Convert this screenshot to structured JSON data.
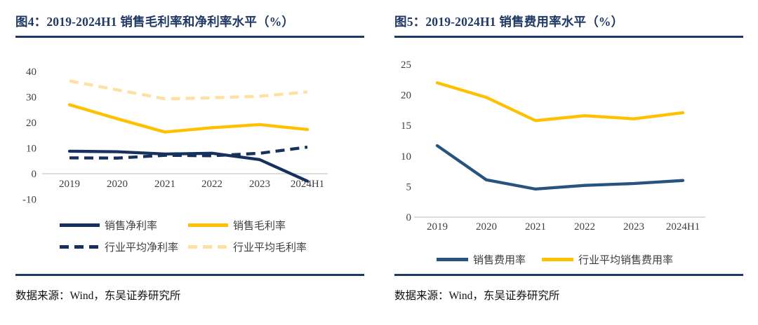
{
  "accent_color": "#1f3864",
  "axis_line_color": "#d0d0d0",
  "panels": [
    {
      "title": "图4：2019-2024H1 销售毛利率和净利率水平（%）",
      "source": "数据来源：Wind，东吴证券研究所"
    },
    {
      "title": "图5：2019-2024H1 销售费用率水平（%）",
      "source": "数据来源：Wind，东吴证券研究所"
    }
  ],
  "chart_data": [
    {
      "type": "line",
      "title": "2019-2024H1 销售毛利率和净利率水平（%）",
      "categories": [
        "2019",
        "2020",
        "2021",
        "2022",
        "2023",
        "2024H1"
      ],
      "ylim": [
        -10,
        40
      ],
      "yticks": [
        40,
        30,
        20,
        10,
        0,
        -10
      ],
      "grid": false,
      "legend_position": "bottom",
      "series": [
        {
          "name": "销售净利率",
          "color": "#16325c",
          "dash": false,
          "values": [
            8.8,
            8.6,
            7.7,
            8.0,
            5.5,
            -2.9
          ]
        },
        {
          "name": "销售毛利率",
          "color": "#ffc000",
          "dash": false,
          "values": [
            27.0,
            21.5,
            16.3,
            18.0,
            19.2,
            17.3
          ]
        },
        {
          "name": "行业平均净利率",
          "color": "#16325c",
          "dash": true,
          "values": [
            6.2,
            6.1,
            7.2,
            7.0,
            8.0,
            10.4
          ]
        },
        {
          "name": "行业平均毛利率",
          "color": "#ffe0a3",
          "dash": true,
          "values": [
            36.3,
            32.8,
            29.3,
            29.7,
            30.3,
            32.0
          ]
        }
      ]
    },
    {
      "type": "line",
      "title": "2019-2024H1 销售费用率水平（%）",
      "categories": [
        "2019",
        "2020",
        "2021",
        "2022",
        "2023",
        "2024H1"
      ],
      "ylim": [
        0,
        25
      ],
      "yticks": [
        25,
        20,
        15,
        10,
        5,
        0
      ],
      "grid": false,
      "legend_position": "bottom",
      "series": [
        {
          "name": "销售费用率",
          "color": "#27547f",
          "dash": false,
          "values": [
            11.7,
            6.1,
            4.6,
            5.2,
            5.5,
            6.0
          ]
        },
        {
          "name": "行业平均销售费用率",
          "color": "#ffc000",
          "dash": false,
          "values": [
            22.0,
            19.6,
            15.8,
            16.6,
            16.1,
            17.1
          ]
        }
      ]
    }
  ]
}
